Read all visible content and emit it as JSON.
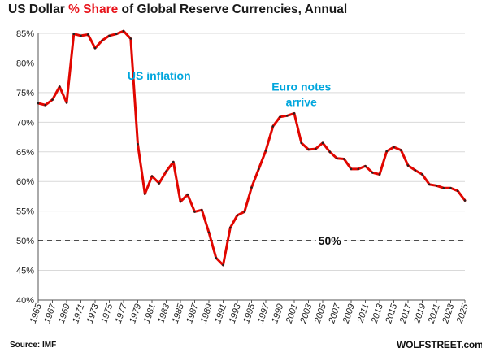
{
  "title": {
    "prefix": "US Dollar ",
    "highlight": "% Share",
    "suffix": " of Global Reserve Currencies, Annual"
  },
  "source": "Source: IMF",
  "brand": "WOLFSTREET.com",
  "colors": {
    "line": "#e10600",
    "marker": "#222222",
    "annotation": "#00a6dd",
    "title_accent": "#e8141c",
    "grid": "#d9d9d9"
  },
  "chart_data": {
    "type": "line",
    "title": "US Dollar % Share of Global Reserve Currencies, Annual",
    "xlabel": "",
    "ylabel": "",
    "xlim": [
      1965,
      2025
    ],
    "ylim": [
      40,
      86
    ],
    "yticks": [
      40,
      45,
      50,
      55,
      60,
      65,
      70,
      75,
      80,
      85
    ],
    "ytick_labels": [
      "40%",
      "45%",
      "50%",
      "55%",
      "60%",
      "65%",
      "70%",
      "75%",
      "80%",
      "85%"
    ],
    "xticks": [
      1965,
      1967,
      1969,
      1971,
      1973,
      1975,
      1977,
      1979,
      1981,
      1983,
      1985,
      1987,
      1989,
      1991,
      1993,
      1995,
      1997,
      1999,
      2001,
      2003,
      2005,
      2007,
      2009,
      2011,
      2013,
      2015,
      2017,
      2019,
      2021,
      2023,
      2025
    ],
    "grid": true,
    "series": [
      {
        "x": [
          1965,
          1966,
          1967,
          1968,
          1969,
          1970,
          1971,
          1972,
          1973,
          1974,
          1975,
          1976,
          1977,
          1978,
          1979,
          1980,
          1981,
          1982,
          1983,
          1984,
          1985,
          1986,
          1987,
          1988,
          1989,
          1990,
          1991,
          1992,
          1993,
          1994,
          1995,
          1996,
          1997,
          1998,
          1999,
          2000,
          2001,
          2002,
          2003,
          2004,
          2005,
          2006,
          2007,
          2008,
          2009,
          2010,
          2011,
          2012,
          2013,
          2014,
          2015,
          2016,
          2017,
          2018,
          2019,
          2020,
          2021,
          2022,
          2023,
          2024,
          2025
        ],
        "y": [
          73.2,
          72.9,
          73.8,
          76.0,
          73.3,
          84.9,
          84.6,
          84.8,
          82.5,
          83.8,
          84.6,
          84.9,
          85.4,
          84.1,
          66.3,
          57.9,
          60.9,
          59.7,
          61.7,
          63.3,
          56.6,
          57.8,
          54.9,
          55.2,
          51.4,
          47.1,
          45.9,
          52.2,
          54.3,
          54.9,
          59.0,
          62.1,
          65.2,
          69.3,
          70.9,
          71.1,
          71.5,
          66.5,
          65.4,
          65.5,
          66.5,
          65.0,
          63.9,
          63.8,
          62.1,
          62.1,
          62.6,
          61.5,
          61.2,
          65.1,
          65.8,
          65.3,
          62.7,
          61.9,
          61.2,
          59.5,
          59.3,
          58.9,
          58.9,
          58.4,
          56.8
        ]
      }
    ],
    "reference_line": {
      "value": 50,
      "label": "50%",
      "style": "dashed"
    },
    "annotations": [
      {
        "text": "US inflation",
        "x": 1982,
        "y": 77.2
      },
      {
        "lines": [
          "Euro notes",
          "arrive"
        ],
        "x": 2002,
        "y": 75.3
      }
    ]
  }
}
